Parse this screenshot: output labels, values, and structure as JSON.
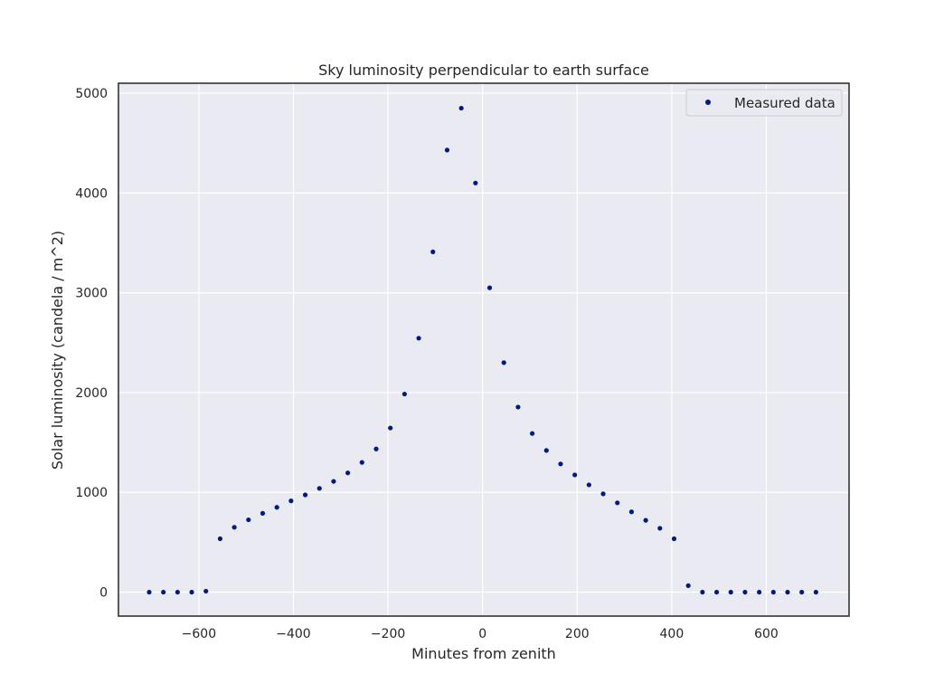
{
  "chart_data": {
    "type": "scatter",
    "title": "Sky luminosity perpendicular to earth surface",
    "xlabel": "Minutes from zenith",
    "ylabel": "Solar luminosity (candela / m^2)",
    "xlim": [
      -770,
      775
    ],
    "ylim": [
      -240,
      5100
    ],
    "x_ticks": [
      -600,
      -400,
      -200,
      0,
      200,
      400,
      600
    ],
    "x_tick_labels": [
      "−600",
      "−400",
      "−200",
      "0",
      "200",
      "400",
      "600"
    ],
    "y_ticks": [
      0,
      1000,
      2000,
      3000,
      4000,
      5000
    ],
    "y_tick_labels": [
      "0",
      "1000",
      "2000",
      "3000",
      "4000",
      "5000"
    ],
    "grid": true,
    "legend_position": "top-right",
    "series": [
      {
        "name": "Measured data",
        "color": "#001c7f",
        "marker": "dot",
        "x": [
          -705,
          -675,
          -645,
          -615,
          -585,
          -555,
          -525,
          -495,
          -465,
          -435,
          -405,
          -375,
          -345,
          -315,
          -285,
          -255,
          -225,
          -195,
          -165,
          -135,
          -105,
          -75,
          -45,
          -15,
          15,
          45,
          75,
          105,
          135,
          165,
          195,
          225,
          255,
          285,
          315,
          345,
          375,
          405,
          435,
          465,
          495,
          525,
          555,
          585,
          615,
          645,
          675,
          705
        ],
        "y": [
          0,
          0,
          0,
          0,
          10,
          535,
          650,
          725,
          790,
          850,
          915,
          975,
          1040,
          1110,
          1195,
          1300,
          1435,
          1645,
          1985,
          2545,
          3410,
          4430,
          4850,
          4100,
          3050,
          2300,
          1855,
          1590,
          1420,
          1285,
          1175,
          1075,
          985,
          895,
          805,
          720,
          640,
          535,
          65,
          0,
          0,
          0,
          0,
          0,
          0,
          0,
          0,
          0
        ]
      }
    ]
  },
  "colors": {
    "plot_background": "#eaeaf2",
    "grid": "#ffffff",
    "axes_edge": "#262626",
    "marker": "#001c7f"
  }
}
